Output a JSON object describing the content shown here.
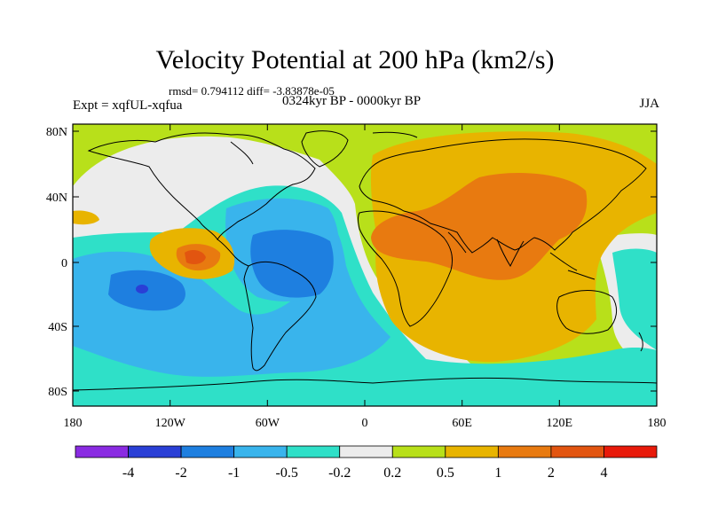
{
  "figure": {
    "title": "Velocity Potential at 200 hPa (km2/s)",
    "stats": "rmsd= 0.794112 diff= -3.83878e-05",
    "experiment": "Expt = xqfUL-xqfua",
    "period": "0324kyr BP - 0000kyr BP",
    "season": "JJA"
  },
  "map": {
    "lat_ticks": [
      "80N",
      "40N",
      "0",
      "40S",
      "80S"
    ],
    "lon_ticks": [
      "180",
      "120W",
      "60W",
      "0",
      "60E",
      "120E",
      "180"
    ]
  },
  "colorbar": {
    "labels": [
      "-4",
      "-2",
      "-1",
      "-0.5",
      "-0.2",
      "0.2",
      "0.5",
      "1",
      "2",
      "4"
    ],
    "colors": [
      "#8a2be2",
      "#2a3fd6",
      "#1e7fe0",
      "#39b4ec",
      "#2fe0c8",
      "#ececec",
      "#b8e01a",
      "#e8b400",
      "#e87a10",
      "#e25510",
      "#e81a0a"
    ]
  },
  "palette": {
    "green": "#b8e01a",
    "white": "#ececec",
    "cyan": "#2fe0c8",
    "lightblue": "#39b4ec",
    "blue": "#1e7fe0",
    "darkblue": "#2a3fd6",
    "yellow": "#e8b400",
    "orange": "#e87a10",
    "darkorange": "#e25510"
  }
}
